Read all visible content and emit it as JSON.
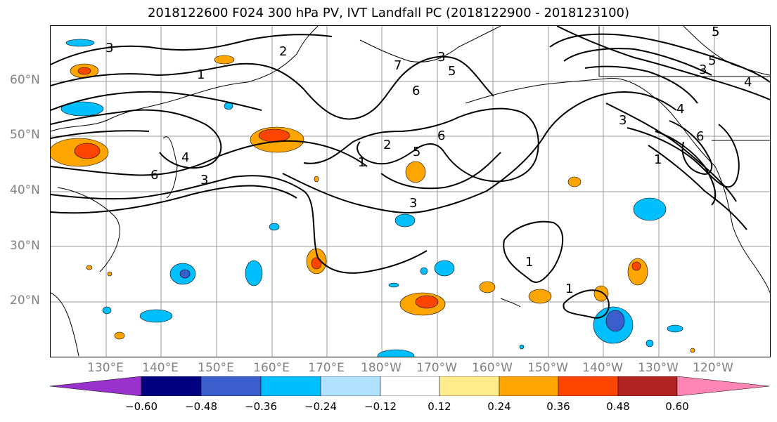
{
  "title": "2018122600 F024 300 hPa PV, IVT Landfall PC (2018122900 - 2018123100)",
  "latitude_labels": [
    "60°N",
    "50°N",
    "40°N",
    "30°N",
    "20°N"
  ],
  "longitude_labels": [
    "130°E",
    "140°E",
    "150°E",
    "160°E",
    "170°E",
    "180°W",
    "170°W",
    "160°W",
    "150°W",
    "140°W",
    "130°W",
    "120°W"
  ],
  "colorbar": {
    "tick_labels": [
      "−0.60",
      "−0.48",
      "−0.36",
      "−0.24",
      "−0.12",
      "0.12",
      "0.24",
      "0.36",
      "0.48",
      "0.60"
    ],
    "colors": [
      "#9932CC",
      "#000080",
      "#3A5FCD",
      "#00BFFF",
      "#B0E2FF",
      "#FFFFFF",
      "#FFEC8B",
      "#FFA500",
      "#FF4500",
      "#B22222",
      "#FF86B4"
    ]
  },
  "contour_labels": [
    "3",
    "2",
    "1",
    "7",
    "6",
    "5",
    "4",
    "2",
    "1",
    "3",
    "6",
    "5",
    "3",
    "1",
    "1",
    "3",
    "4",
    "5",
    "6",
    "3",
    "1",
    "6",
    "5",
    "4",
    "3"
  ]
}
